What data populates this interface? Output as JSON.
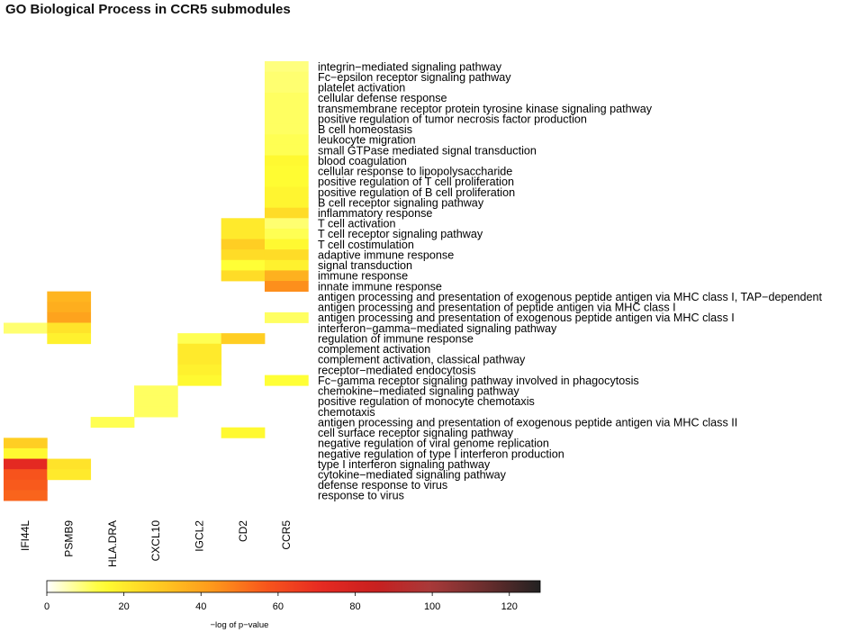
{
  "title": "GO Biological Process in CCR5 submodules",
  "chart_data": {
    "type": "heatmap",
    "title": "GO Biological Process in CCR5 submodules",
    "columns": [
      "IFI44L",
      "PSMB9",
      "HLA.DRA",
      "CXCL10",
      "IGCL2",
      "CD2",
      "CCR5"
    ],
    "rows": [
      "integrin−mediated signaling pathway",
      "Fc−epsilon receptor signaling pathway",
      "platelet activation",
      "cellular defense response",
      "transmembrane receptor protein tyrosine kinase signaling pathway",
      "positive regulation of tumor necrosis factor production",
      "B cell homeostasis",
      "leukocyte migration",
      "small GTPase mediated signal transduction",
      "blood coagulation",
      "cellular response to lipopolysaccharide",
      "positive regulation of T cell proliferation",
      "positive regulation of B cell proliferation",
      "B cell receptor signaling pathway",
      "inflammatory response",
      "T cell activation",
      "T cell receptor signaling pathway",
      "T cell costimulation",
      "adaptive immune response",
      "signal transduction",
      "immune response",
      "innate immune response",
      "antigen processing and presentation of exogenous peptide antigen via MHC class I, TAP−dependent",
      "antigen processing and presentation of peptide antigen via MHC class I",
      "antigen processing and presentation of exogenous peptide antigen via MHC class I",
      "interferon−gamma−mediated signaling pathway",
      "regulation of immune response",
      "complement activation",
      "complement activation, classical pathway",
      "receptor−mediated endocytosis",
      "Fc−gamma receptor signaling pathway involved in phagocytosis",
      "chemokine−mediated signaling pathway",
      "positive regulation of monocyte chemotaxis",
      "chemotaxis",
      "antigen processing and presentation of exogenous peptide antigen via MHC class II",
      "cell surface receptor signaling pathway",
      "negative regulation of viral genome replication",
      "negative regulation of type I interferon production",
      "type I interferon signaling pathway",
      "cytokine−mediated signaling pathway",
      "defense response to virus",
      "response to virus"
    ],
    "cells": [
      {
        "row": 0,
        "col": 6,
        "value": 9
      },
      {
        "row": 1,
        "col": 6,
        "value": 10
      },
      {
        "row": 2,
        "col": 6,
        "value": 10
      },
      {
        "row": 3,
        "col": 6,
        "value": 11
      },
      {
        "row": 4,
        "col": 6,
        "value": 11
      },
      {
        "row": 5,
        "col": 6,
        "value": 11
      },
      {
        "row": 6,
        "col": 6,
        "value": 11
      },
      {
        "row": 7,
        "col": 6,
        "value": 12
      },
      {
        "row": 8,
        "col": 6,
        "value": 12
      },
      {
        "row": 9,
        "col": 6,
        "value": 16
      },
      {
        "row": 10,
        "col": 6,
        "value": 15
      },
      {
        "row": 11,
        "col": 6,
        "value": 15
      },
      {
        "row": 12,
        "col": 6,
        "value": 17
      },
      {
        "row": 13,
        "col": 6,
        "value": 17
      },
      {
        "row": 14,
        "col": 6,
        "value": 24
      },
      {
        "row": 15,
        "col": 5,
        "value": 20
      },
      {
        "row": 15,
        "col": 6,
        "value": 10
      },
      {
        "row": 16,
        "col": 5,
        "value": 20
      },
      {
        "row": 16,
        "col": 6,
        "value": 12
      },
      {
        "row": 17,
        "col": 5,
        "value": 28
      },
      {
        "row": 17,
        "col": 6,
        "value": 16
      },
      {
        "row": 18,
        "col": 5,
        "value": 24
      },
      {
        "row": 18,
        "col": 6,
        "value": 24
      },
      {
        "row": 19,
        "col": 5,
        "value": 14
      },
      {
        "row": 19,
        "col": 6,
        "value": 18
      },
      {
        "row": 20,
        "col": 5,
        "value": 24
      },
      {
        "row": 20,
        "col": 6,
        "value": 36
      },
      {
        "row": 21,
        "col": 6,
        "value": 45
      },
      {
        "row": 22,
        "col": 1,
        "value": 35
      },
      {
        "row": 23,
        "col": 1,
        "value": 37
      },
      {
        "row": 24,
        "col": 1,
        "value": 40
      },
      {
        "row": 24,
        "col": 6,
        "value": 11
      },
      {
        "row": 25,
        "col": 0,
        "value": 10
      },
      {
        "row": 25,
        "col": 1,
        "value": 22
      },
      {
        "row": 26,
        "col": 1,
        "value": 18
      },
      {
        "row": 26,
        "col": 4,
        "value": 12
      },
      {
        "row": 26,
        "col": 5,
        "value": 28
      },
      {
        "row": 27,
        "col": 4,
        "value": 20
      },
      {
        "row": 28,
        "col": 4,
        "value": 20
      },
      {
        "row": 29,
        "col": 4,
        "value": 18
      },
      {
        "row": 30,
        "col": 4,
        "value": 16
      },
      {
        "row": 30,
        "col": 6,
        "value": 14
      },
      {
        "row": 31,
        "col": 3,
        "value": 11
      },
      {
        "row": 32,
        "col": 3,
        "value": 11
      },
      {
        "row": 33,
        "col": 3,
        "value": 11
      },
      {
        "row": 34,
        "col": 2,
        "value": 12
      },
      {
        "row": 35,
        "col": 5,
        "value": 16
      },
      {
        "row": 36,
        "col": 0,
        "value": 28
      },
      {
        "row": 37,
        "col": 0,
        "value": 16
      },
      {
        "row": 38,
        "col": 0,
        "value": 72
      },
      {
        "row": 38,
        "col": 1,
        "value": 22
      },
      {
        "row": 39,
        "col": 0,
        "value": 58
      },
      {
        "row": 39,
        "col": 1,
        "value": 20
      },
      {
        "row": 40,
        "col": 0,
        "value": 56
      },
      {
        "row": 41,
        "col": 0,
        "value": 54
      }
    ],
    "colorbar": {
      "label": "−log of p−value",
      "min": 0,
      "max": 128,
      "ticks": [
        0,
        20,
        40,
        60,
        80,
        100,
        120
      ],
      "colors": [
        "#ffffff",
        "#ffff33",
        "#ffcc22",
        "#fe9a1c",
        "#f8561c",
        "#e62a22",
        "#c81f1f",
        "#a83a3a",
        "#6a2d2d",
        "#222222"
      ]
    }
  }
}
